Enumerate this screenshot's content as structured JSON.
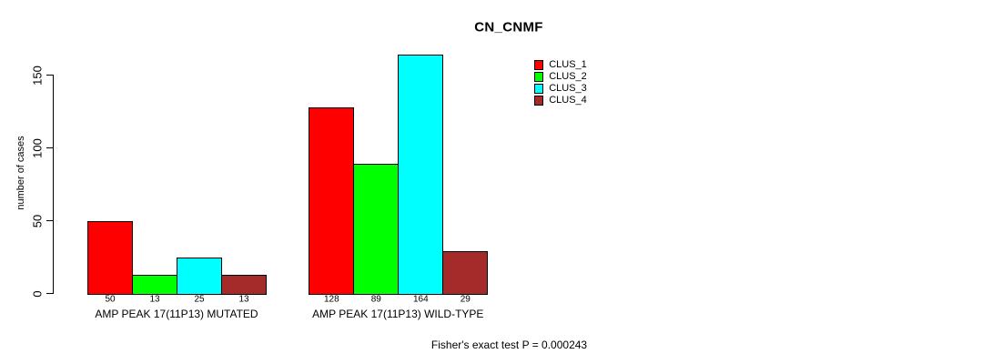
{
  "chart_data": {
    "type": "bar",
    "title": "CN_CNMF",
    "ylabel": "number of cases",
    "xlabel": "",
    "ylim": [
      0,
      164
    ],
    "yticks": [
      0,
      50,
      100,
      150
    ],
    "grid": false,
    "legend_position": "top-right",
    "categories": [
      "AMP PEAK 17(11P13) MUTATED",
      "AMP PEAK 17(11P13) WILD-TYPE"
    ],
    "series": [
      {
        "name": "CLUS_1",
        "color": "#FF0000",
        "values": [
          50,
          128
        ]
      },
      {
        "name": "CLUS_2",
        "color": "#00FF00",
        "values": [
          13,
          89
        ]
      },
      {
        "name": "CLUS_3",
        "color": "#00FFFF",
        "values": [
          25,
          164
        ]
      },
      {
        "name": "CLUS_4",
        "color": "#A52A2A",
        "values": [
          13,
          29
        ]
      }
    ],
    "annotation": "Fisher's exact test P = 0.000243"
  },
  "colors": {
    "axis": "#000000",
    "background": "#FFFFFF",
    "text": "#000000"
  }
}
